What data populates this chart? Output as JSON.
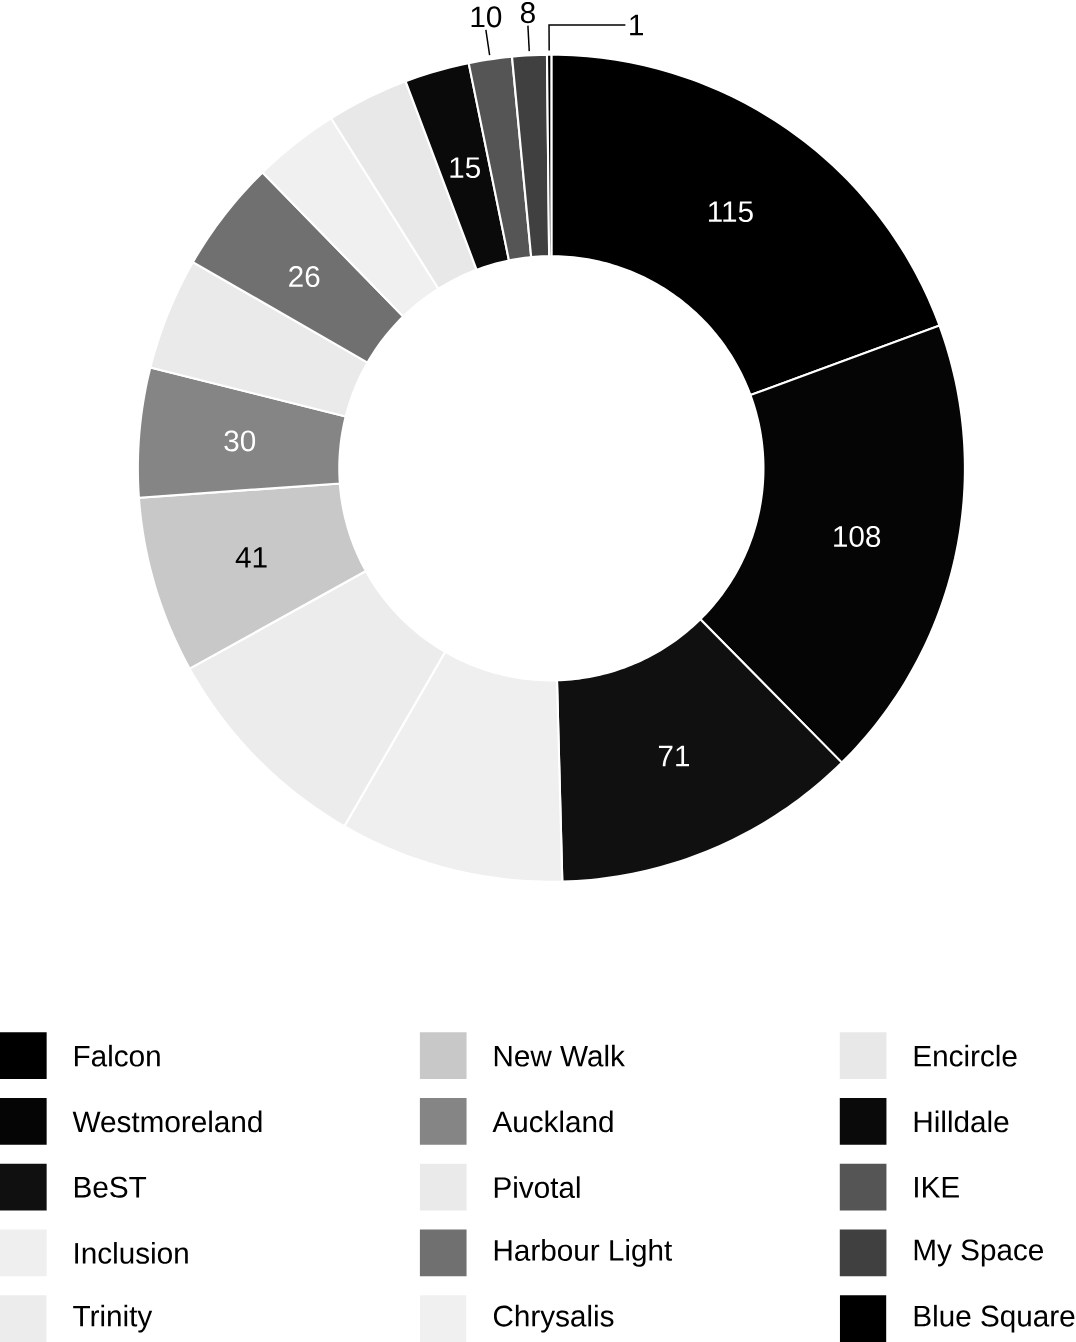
{
  "chart_data": {
    "type": "donut",
    "categories": [
      "Falcon",
      "Westmoreland",
      "BeST",
      "Inclusion",
      "Trinity",
      "New Walk",
      "Auckland",
      "Pivotal",
      "Harbour Light",
      "Chrysalis",
      "Encircle",
      "Hilldale",
      "IKE",
      "My Space",
      "Blue Square"
    ],
    "values": [
      115,
      108,
      71,
      52,
      51,
      41,
      30,
      26,
      26,
      20,
      19,
      15,
      10,
      8,
      1
    ],
    "value_labels": [
      "115",
      "108",
      "71",
      null,
      null,
      "41",
      "30",
      null,
      "26",
      null,
      null,
      "15",
      "10",
      "8",
      "1"
    ],
    "colors": [
      "#000000",
      "#050505",
      "#101010",
      "#efefef",
      "#ececec",
      "#c8c8c8",
      "#858585",
      "#eaeaea",
      "#707070",
      "#f0f0f0",
      "#e8e8e8",
      "#0a0a0a",
      "#555555",
      "#404040",
      "#000000"
    ],
    "legend": "bottom"
  }
}
